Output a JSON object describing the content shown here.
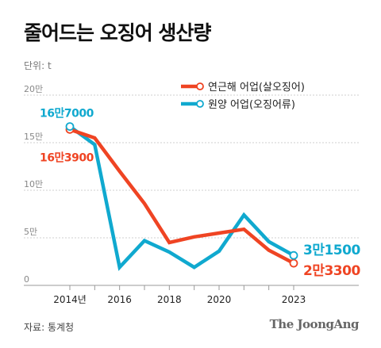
{
  "header": {
    "title": "줄어드는 오징어 생산량",
    "unit": "단위: t"
  },
  "footer": {
    "source": "자료: 통계청",
    "publisher": "The JoongAng"
  },
  "colors": {
    "coastal": "#ef4423",
    "ocean": "#10a9cf"
  },
  "chart_data": {
    "type": "line",
    "x": [
      2014,
      2015,
      2016,
      2017,
      2018,
      2019,
      2020,
      2021,
      2022,
      2023
    ],
    "x_ticks": [
      2014,
      2016,
      2018,
      2020,
      2023
    ],
    "x_tick_labels": [
      "2014년",
      "2016",
      "2018",
      "2020",
      "2023"
    ],
    "ylim": [
      0,
      200000
    ],
    "y_ticks": [
      0,
      50000,
      100000,
      150000,
      200000
    ],
    "y_tick_labels": [
      "0",
      "5만",
      "10만",
      "15만",
      "20만"
    ],
    "grid": "horizontal",
    "legend_position": "top-right",
    "series": [
      {
        "name": "연근해 어업(살오징어)",
        "color": "#ef4423",
        "values": [
          163900,
          155000,
          120000,
          86000,
          45000,
          51000,
          55000,
          59000,
          37000,
          23300
        ]
      },
      {
        "name": "원양 어업(오징어류)",
        "color": "#10a9cf",
        "values": [
          167000,
          148000,
          19000,
          47000,
          35000,
          19000,
          36000,
          74000,
          46000,
          31500
        ]
      }
    ],
    "annotations": [
      {
        "series": 1,
        "index": 0,
        "text": "16만7000"
      },
      {
        "series": 0,
        "index": 0,
        "text": "16만3900"
      },
      {
        "series": 1,
        "index": 9,
        "text": "3만1500"
      },
      {
        "series": 0,
        "index": 9,
        "text": "2만3300"
      }
    ]
  }
}
